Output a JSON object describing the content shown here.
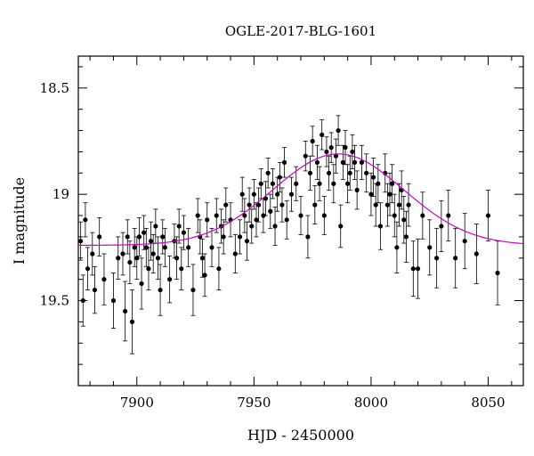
{
  "chart_data": {
    "type": "scatter",
    "title": "OGLE-2017-BLG-1601",
    "xlabel": "HJD - 2450000",
    "ylabel": "I magnitude",
    "xlim": [
      7875,
      8065
    ],
    "ylim": [
      19.9,
      18.35
    ],
    "y_inverted": true,
    "xticks": [
      7900,
      7950,
      8000,
      8050
    ],
    "xtick_labels": [
      "7900",
      "7950",
      "8000",
      "8050"
    ],
    "yticks": [
      18.5,
      19,
      19.5
    ],
    "ytick_labels": [
      "18.5",
      "19",
      "19.5"
    ],
    "grid": false,
    "legend": "none",
    "colors": {
      "points": "#000000",
      "model": "#cc00cc"
    },
    "series": [
      {
        "kind": "observations",
        "x": [
          7876,
          7877,
          7878,
          7879,
          7881,
          7882,
          7884,
          7886,
          7890,
          7892,
          7894,
          7895,
          7896,
          7897,
          7898,
          7899,
          7900,
          7901,
          7902,
          7903,
          7904,
          7905,
          7906,
          7907,
          7908,
          7909,
          7910,
          7911,
          7912,
          7914,
          7916,
          7917,
          7918,
          7919,
          7920,
          7922,
          7924,
          7926,
          7927,
          7928,
          7929,
          7930,
          7932,
          7934,
          7935,
          7936,
          7937,
          7938,
          7940,
          7942,
          7944,
          7945,
          7946,
          7947,
          7948,
          7949,
          7950,
          7951,
          7952,
          7953,
          7954,
          7955,
          7956,
          7957,
          7958,
          7959,
          7960,
          7961,
          7962,
          7963,
          7964,
          7966,
          7968,
          7970,
          7972,
          7973,
          7974,
          7975,
          7976,
          7977,
          7978,
          7979,
          7980,
          7981,
          7982,
          7983,
          7984,
          7985,
          7986,
          7987,
          7988,
          7989,
          7990,
          7991,
          7992,
          7993,
          7994,
          7996,
          7998,
          8000,
          8001,
          8002,
          8003,
          8004,
          8006,
          8007,
          8008,
          8009,
          8010,
          8011,
          8012,
          8013,
          8014,
          8015,
          8016,
          8018,
          8020,
          8022,
          8025,
          8028,
          8030,
          8033,
          8036,
          8040,
          8045,
          8050,
          8054
        ],
        "y": [
          19.22,
          19.5,
          19.12,
          19.35,
          19.28,
          19.45,
          19.2,
          19.4,
          19.5,
          19.3,
          19.28,
          19.55,
          19.2,
          19.32,
          19.6,
          19.25,
          19.3,
          19.2,
          19.42,
          19.18,
          19.25,
          19.35,
          19.22,
          19.28,
          19.15,
          19.3,
          19.45,
          19.2,
          19.25,
          19.4,
          19.22,
          19.3,
          19.15,
          19.35,
          19.18,
          19.25,
          19.45,
          19.1,
          19.2,
          19.3,
          19.38,
          19.12,
          19.25,
          19.1,
          19.35,
          19.15,
          19.2,
          19.05,
          19.12,
          19.28,
          19.2,
          19.0,
          19.1,
          19.22,
          19.05,
          19.15,
          19.0,
          19.12,
          19.05,
          18.95,
          19.1,
          19.02,
          18.9,
          19.08,
          18.95,
          19.15,
          19.0,
          18.92,
          19.05,
          18.85,
          19.12,
          19.0,
          18.95,
          19.1,
          18.82,
          19.2,
          18.9,
          18.75,
          19.05,
          18.85,
          18.95,
          18.72,
          19.1,
          18.8,
          18.9,
          18.78,
          18.95,
          18.82,
          18.7,
          19.15,
          18.85,
          18.78,
          18.95,
          18.9,
          18.8,
          18.85,
          18.98,
          18.85,
          18.9,
          19.0,
          18.92,
          19.05,
          18.95,
          19.15,
          18.9,
          19.05,
          19.0,
          18.95,
          19.1,
          19.25,
          19.05,
          18.98,
          19.12,
          19.2,
          19.05,
          19.35,
          19.35,
          19.1,
          19.25,
          19.3,
          19.15,
          19.1,
          19.3,
          19.22,
          19.28,
          19.1,
          19.37
        ],
        "err": [
          0.09,
          0.12,
          0.08,
          0.1,
          0.1,
          0.11,
          0.09,
          0.12,
          0.13,
          0.1,
          0.1,
          0.14,
          0.08,
          0.1,
          0.15,
          0.09,
          0.1,
          0.09,
          0.12,
          0.08,
          0.09,
          0.1,
          0.09,
          0.09,
          0.08,
          0.1,
          0.12,
          0.08,
          0.09,
          0.11,
          0.08,
          0.1,
          0.08,
          0.1,
          0.08,
          0.09,
          0.12,
          0.08,
          0.08,
          0.09,
          0.1,
          0.08,
          0.09,
          0.08,
          0.1,
          0.08,
          0.08,
          0.08,
          0.08,
          0.09,
          0.08,
          0.08,
          0.08,
          0.09,
          0.08,
          0.08,
          0.07,
          0.08,
          0.08,
          0.07,
          0.08,
          0.08,
          0.07,
          0.08,
          0.07,
          0.09,
          0.08,
          0.07,
          0.08,
          0.07,
          0.09,
          0.08,
          0.08,
          0.09,
          0.07,
          0.1,
          0.08,
          0.07,
          0.09,
          0.08,
          0.08,
          0.07,
          0.09,
          0.07,
          0.08,
          0.07,
          0.09,
          0.08,
          0.07,
          0.1,
          0.08,
          0.08,
          0.09,
          0.08,
          0.08,
          0.08,
          0.09,
          0.08,
          0.09,
          0.1,
          0.09,
          0.1,
          0.09,
          0.11,
          0.09,
          0.1,
          0.1,
          0.09,
          0.1,
          0.12,
          0.1,
          0.09,
          0.11,
          0.12,
          0.1,
          0.13,
          0.14,
          0.11,
          0.13,
          0.14,
          0.12,
          0.12,
          0.14,
          0.13,
          0.14,
          0.12,
          0.15
        ]
      },
      {
        "kind": "model",
        "baseline": 19.24,
        "peak_mag": 18.81,
        "t0": 7986,
        "tE": 28
      }
    ]
  }
}
